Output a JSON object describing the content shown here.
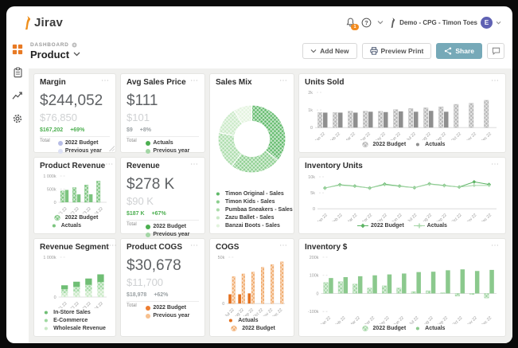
{
  "colors": {
    "accent_orange": "#ef8122",
    "share_teal": "#76a9b8",
    "avatar_purple": "#5f61b3",
    "badge_orange": "#f28b1f",
    "positive_green": "#4caf50"
  },
  "header": {
    "logo_text": "Jirav",
    "notification_count": "1",
    "user_label": "Demo - CPG - Timon Toes",
    "avatar_initial": "E"
  },
  "toolbar": {
    "breadcrumb": "DASHBOARD",
    "page_title": "Product",
    "add_new": "Add New",
    "preview_print": "Preview Print",
    "share": "Share"
  },
  "sidebar": {
    "items": [
      {
        "icon": "dashboard-grid",
        "active": true
      },
      {
        "icon": "reports-clipboard",
        "active": false
      },
      {
        "icon": "trend-chart",
        "active": false
      },
      {
        "icon": "settings-gear",
        "active": false
      }
    ]
  },
  "cards": [
    {
      "id": "margin",
      "type": "kpi",
      "title": "Margin",
      "value": "$244,052",
      "secondary": "$76,850",
      "delta": "$167,202",
      "delta_pct": "+69%",
      "delta_color": "#4caf50",
      "total_label": "Total",
      "legend": [
        {
          "label": "2022 Budget",
          "marker": "dot",
          "color": "#b7bde6"
        },
        {
          "label": "Previous year",
          "marker": "dot",
          "color": "#dde1f5"
        }
      ]
    },
    {
      "id": "avg-sales-price",
      "type": "kpi",
      "title": "Avg Sales Price",
      "value": "$111",
      "secondary": "$101",
      "delta": "$9",
      "delta_pct": "+8%",
      "delta_color": "#9aa0a3",
      "total_label": "Total",
      "legend": [
        {
          "label": "Actuals",
          "marker": "dot",
          "color": "#4caf50"
        },
        {
          "label": "Previous year",
          "marker": "dot",
          "color": "#a3d6a5"
        }
      ]
    },
    {
      "id": "sales-mix",
      "type": "chart",
      "title": "Sales Mix",
      "legend_layout": "col",
      "chart_data": {
        "type": "donut",
        "labels": [
          "Timon Original - Sales",
          "Timon Kids - Sales",
          "Pumbaa Sneakers - Sales",
          "Zazu Ballet - Sales",
          "Banzai Boots - Sales"
        ],
        "values": [
          36,
          24,
          18,
          13,
          9
        ],
        "colors": [
          "#5fb969",
          "#8bce8e",
          "#aadcaa",
          "#c9e9c6",
          "#e2f3dd"
        ]
      },
      "legend": [
        {
          "label": "Timon Original - Sales",
          "marker": "dot",
          "color": "#5fb969"
        },
        {
          "label": "Timon Kids - Sales",
          "marker": "dot",
          "color": "#8bce8e"
        },
        {
          "label": "Pumbaa Sneakers - Sales",
          "marker": "dot",
          "color": "#aadcaa"
        },
        {
          "label": "Zazu Ballet - Sales",
          "marker": "dot",
          "color": "#c9e9c6"
        },
        {
          "label": "Banzai Boots - Sales",
          "marker": "dot",
          "color": "#e2f3dd"
        }
      ]
    },
    {
      "id": "units-sold",
      "type": "chart",
      "title": "Units Sold",
      "legend_layout": "row",
      "chart_data": {
        "type": "bar",
        "categories": [
          "Jan 22",
          "Feb 22",
          "Mar 22",
          "Apr 22",
          "May 22",
          "Jun 22",
          "Jul 22",
          "Aug 22",
          "Sep 22",
          "Oct 22",
          "Nov 22",
          "Dec 22"
        ],
        "series": [
          {
            "name": "2022 Budget",
            "style": "hatch",
            "color": "#b3b3b3",
            "values": [
              850,
              850,
              930,
              930,
              920,
              1020,
              1080,
              1120,
              1180,
              1320,
              1380,
              1550
            ]
          },
          {
            "name": "Actuals",
            "style": "solid",
            "color": "#8f8f8f",
            "values": [
              850,
              850,
              850,
              900,
              880,
              920,
              900,
              950,
              900,
              null,
              null,
              null
            ]
          }
        ],
        "ylim": [
          0,
          2000
        ],
        "yticks": [
          {
            "v": 0,
            "label": "0"
          },
          {
            "v": 1000,
            "label": "1k"
          },
          {
            "v": 2000,
            "label": "2k"
          }
        ]
      },
      "legend": [
        {
          "label": "2022 Budget",
          "marker": "hatch-dot",
          "color": "#b3b3b3"
        },
        {
          "label": "Actuals",
          "marker": "solid-dot",
          "color": "#8f8f8f"
        }
      ]
    },
    {
      "id": "product-revenue",
      "type": "chart",
      "title": "Product Revenue",
      "legend_layout": "col",
      "chart_data": {
        "type": "bar",
        "categories": [
          "Q1 22",
          "Q2 22",
          "Q3 22",
          "Q4 22"
        ],
        "series": [
          {
            "name": "2022 Budget",
            "style": "hatch",
            "color": "#7cc47f",
            "values": [
              430,
              560,
              660,
              810
            ]
          },
          {
            "name": "Actuals",
            "style": "solid",
            "color": "#7cc47f",
            "values": [
              470,
              300,
              305,
              null
            ]
          }
        ],
        "ylim": [
          0,
          1000
        ],
        "yticks": [
          {
            "v": 0,
            "label": "0"
          },
          {
            "v": 500,
            "label": "500k"
          },
          {
            "v": 1000,
            "label": "1 000k"
          }
        ]
      },
      "legend": [
        {
          "label": "2022 Budget",
          "marker": "hatch-dot",
          "color": "#7cc47f"
        },
        {
          "label": "Actuals",
          "marker": "solid-dot",
          "color": "#7cc47f"
        }
      ]
    },
    {
      "id": "revenue",
      "type": "kpi",
      "title": "Revenue",
      "value": "$278 K",
      "secondary": "$90 K",
      "delta": "$187 K",
      "delta_pct": "+67%",
      "delta_color": "#4caf50",
      "total_label": "Total",
      "legend": [
        {
          "label": "2022 Budget",
          "marker": "dot",
          "color": "#4caf50"
        },
        {
          "label": "Previous year",
          "marker": "dot",
          "color": "#a3d6a5"
        }
      ]
    },
    {
      "id": "inventory-units",
      "type": "chart",
      "title": "Inventory Units",
      "legend_layout": "row",
      "chart_data": {
        "type": "line",
        "categories": [
          "Jan 22",
          "Feb 22",
          "Mar 22",
          "Apr 22",
          "May 22",
          "Jun 22",
          "Jul 22",
          "Aug 22",
          "Sep 22",
          "Oct 22",
          "Nov 22",
          "Dec 22"
        ],
        "series": [
          {
            "name": "2022 Budget",
            "marker": "diamond",
            "color": "#5db465",
            "values": [
              6.5,
              7.5,
              7.1,
              6.5,
              7.7,
              7.1,
              6.6,
              7.8,
              7.3,
              6.8,
              8.4,
              7.6
            ]
          },
          {
            "name": "Actuals",
            "marker": "plus",
            "color": "#a5d6a7",
            "values": [
              6.5,
              7.4,
              7.0,
              6.5,
              7.5,
              7.0,
              6.6,
              7.7,
              7.2,
              6.8,
              7.3,
              7.3
            ]
          }
        ],
        "ylim": [
          0,
          10
        ],
        "yticks": [
          {
            "v": 0,
            "label": "0"
          },
          {
            "v": 5,
            "label": "5k"
          },
          {
            "v": 10,
            "label": "10k"
          }
        ]
      },
      "legend": [
        {
          "label": "2022 Budget",
          "marker": "diamond",
          "color": "#5db465"
        },
        {
          "label": "Actuals",
          "marker": "plus",
          "color": "#a5d6a7"
        }
      ]
    },
    {
      "id": "revenue-segment",
      "type": "chart",
      "title": "Revenue Segment",
      "legend_layout": "col",
      "chart_data": {
        "type": "stacked",
        "categories": [
          "Q1 22",
          "Q2 22",
          "Q3 22",
          "Q4 22"
        ],
        "series": [
          {
            "name": "Wholesale Revenue",
            "style": "hatch",
            "color": "#c7e8c4",
            "values": [
              95,
              125,
              150,
              185
            ]
          },
          {
            "name": "E-Commerce",
            "style": "hatch",
            "color": "#9ed8a0",
            "values": [
              100,
              130,
              155,
              190
            ]
          },
          {
            "name": "In-Store Sales",
            "style": "solid",
            "color": "#6fbe74",
            "values": [
              100,
              130,
              160,
              195
            ]
          }
        ],
        "ylim": [
          0,
          1000
        ],
        "yticks": [
          {
            "v": 0,
            "label": "0"
          },
          {
            "v": 1000,
            "label": "1 000k"
          }
        ]
      },
      "legend": [
        {
          "label": "In-Store Sales",
          "marker": "dot",
          "color": "#6fbe74"
        },
        {
          "label": "E-Commerce",
          "marker": "dot",
          "color": "#9ed8a0"
        },
        {
          "label": "Wholesale Revenue",
          "marker": "dot",
          "color": "#c7e8c4"
        }
      ]
    },
    {
      "id": "product-cogs",
      "type": "kpi",
      "title": "Product COGS",
      "value": "$30,678",
      "secondary": "$11,700",
      "delta": "$18,978",
      "delta_pct": "+62%",
      "delta_color": "#9aa0a3",
      "total_label": "Total",
      "legend": [
        {
          "label": "2022 Budget",
          "marker": "dot",
          "color": "#ed7d31"
        },
        {
          "label": "Previous year",
          "marker": "dot",
          "color": "#f7c08e"
        }
      ]
    },
    {
      "id": "cogs",
      "type": "chart",
      "title": "COGS",
      "legend_layout": "col",
      "chart_data": {
        "type": "bar",
        "categories": [
          "Jul 22",
          "Aug 22",
          "Sep 22",
          "Oct 22",
          "Nov 22",
          "Dec 22"
        ],
        "series": [
          {
            "name": "Actuals",
            "style": "solid",
            "color": "#e4701e",
            "values": [
              10,
              10,
              11,
              null,
              null,
              null
            ]
          },
          {
            "name": "2022 Budget",
            "style": "hatch",
            "color": "#f0a868",
            "values": [
              29,
              32,
              34,
              39,
              42,
              45
            ]
          }
        ],
        "ylim": [
          0,
          50
        ],
        "yticks": [
          {
            "v": 0,
            "label": "0"
          },
          {
            "v": 50,
            "label": "50k"
          }
        ]
      },
      "legend": [
        {
          "label": "Actuals",
          "marker": "solid-dot",
          "color": "#e4701e"
        },
        {
          "label": "2022 Budget",
          "marker": "hatch-dot",
          "color": "#f0a868"
        }
      ]
    },
    {
      "id": "inventory-dollars",
      "type": "chart",
      "title": "Inventory $",
      "legend_layout": "row",
      "chart_data": {
        "type": "bar",
        "categories": [
          "Jan 22",
          "Feb 22",
          "Mar 22",
          "Apr 22",
          "May 22",
          "Jun 22",
          "Jul 22",
          "Aug 22",
          "Sep 22",
          "Oct 22",
          "Nov 22",
          "Dec 22"
        ],
        "series": [
          {
            "name": "2022 Budget",
            "style": "hatch",
            "color": "#9fd4a1",
            "values": [
              60,
              65,
              52,
              30,
              42,
              30,
              10,
              15,
              4,
              -15,
              -6,
              -25
            ]
          },
          {
            "name": "Actuals",
            "style": "solid",
            "color": "#8bc98d",
            "values": [
              85,
              90,
              95,
              100,
              105,
              110,
              118,
              120,
              128,
              133,
              124,
              130
            ]
          }
        ],
        "ylim": [
          -100,
          200
        ],
        "yticks": [
          {
            "v": -100,
            "label": "-100k"
          },
          {
            "v": 0,
            "label": "0"
          },
          {
            "v": 100,
            "label": "100k"
          },
          {
            "v": 200,
            "label": "200k"
          }
        ]
      },
      "legend": [
        {
          "label": "2022 Budget",
          "marker": "hatch-dot",
          "color": "#9fd4a1"
        },
        {
          "label": "Actuals",
          "marker": "solid-dot",
          "color": "#8bc98d"
        }
      ]
    }
  ]
}
